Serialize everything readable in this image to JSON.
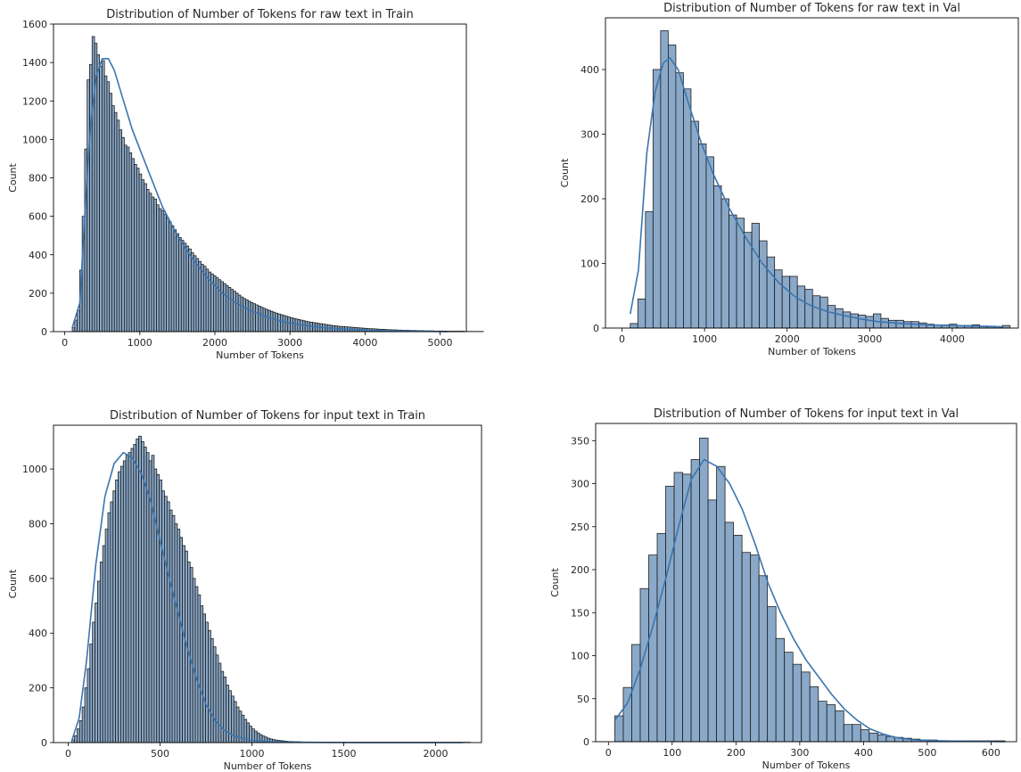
{
  "colors": {
    "bar": "#7096bd",
    "edge": "#1f1f1f",
    "kde": "#3b75af"
  },
  "chart_data": [
    {
      "type": "bar",
      "title": "Distribution of Number of Tokens for raw text in Train",
      "xlabel": "Number of Tokens",
      "ylabel": "Count",
      "xlim": [
        -150,
        5350
      ],
      "ylim": [
        0,
        1600
      ],
      "xticks": [
        0,
        1000,
        2000,
        3000,
        4000,
        5000
      ],
      "yticks": [
        0,
        200,
        400,
        600,
        800,
        1000,
        1200,
        1400,
        1600
      ],
      "bin_start": 100,
      "bin_width": 33,
      "values": [
        20,
        60,
        110,
        320,
        600,
        950,
        1310,
        1390,
        1535,
        1500,
        1440,
        1380,
        1410,
        1330,
        1300,
        1240,
        1175,
        1140,
        1100,
        1050,
        1010,
        970,
        960,
        930,
        900,
        870,
        850,
        820,
        790,
        770,
        740,
        720,
        700,
        690,
        660,
        640,
        630,
        610,
        590,
        570,
        550,
        530,
        510,
        490,
        475,
        460,
        445,
        430,
        410,
        395,
        380,
        365,
        350,
        340,
        325,
        310,
        300,
        290,
        280,
        270,
        260,
        250,
        240,
        230,
        220,
        210,
        200,
        190,
        180,
        172,
        165,
        158,
        151,
        145,
        139,
        133,
        127,
        121,
        116,
        111,
        106,
        101,
        96,
        92,
        88,
        84,
        80,
        76,
        72,
        69,
        66,
        63,
        60,
        57,
        54,
        51,
        49,
        47,
        45,
        43,
        41,
        39,
        37,
        35,
        33,
        31,
        30,
        28,
        27,
        26,
        25,
        24,
        23,
        22,
        21,
        20,
        19,
        18,
        17,
        16,
        15,
        15,
        14,
        13,
        12,
        12,
        11,
        10,
        10,
        9,
        9,
        8,
        8,
        7,
        7,
        7,
        6,
        6,
        6,
        5,
        5,
        5,
        4,
        4,
        4,
        4,
        3,
        3,
        3,
        3,
        3,
        2,
        2,
        2,
        2,
        2,
        2,
        2,
        1,
        1,
        1,
        1,
        1,
        1,
        1,
        1
      ],
      "kde": [
        [
          100,
          20
        ],
        [
          200,
          150
        ],
        [
          280,
          700
        ],
        [
          350,
          1100
        ],
        [
          420,
          1330
        ],
        [
          500,
          1420
        ],
        [
          580,
          1420
        ],
        [
          660,
          1360
        ],
        [
          760,
          1230
        ],
        [
          900,
          1050
        ],
        [
          1100,
          850
        ],
        [
          1300,
          650
        ],
        [
          1500,
          500
        ],
        [
          1700,
          380
        ],
        [
          1900,
          280
        ],
        [
          2100,
          200
        ],
        [
          2300,
          145
        ],
        [
          2500,
          105
        ],
        [
          2700,
          75
        ],
        [
          2900,
          52
        ],
        [
          3100,
          38
        ],
        [
          3300,
          27
        ],
        [
          3500,
          19
        ],
        [
          3800,
          11
        ],
        [
          4100,
          6
        ],
        [
          4400,
          4
        ],
        [
          4700,
          2
        ],
        [
          5100,
          0
        ]
      ],
      "grid": false,
      "legend": "none"
    },
    {
      "type": "bar",
      "title": "Distribution of Number of Tokens for raw text in Val",
      "xlabel": "Number of Tokens",
      "ylabel": "Count",
      "xlim": [
        -200,
        4800
      ],
      "ylim": [
        0,
        480
      ],
      "xticks": [
        0,
        1000,
        2000,
        3000,
        4000
      ],
      "yticks": [
        0,
        100,
        200,
        300,
        400
      ],
      "bin_start": 100,
      "bin_width": 92,
      "values": [
        7,
        45,
        180,
        400,
        460,
        438,
        395,
        370,
        320,
        285,
        265,
        220,
        200,
        175,
        170,
        148,
        162,
        135,
        110,
        90,
        80,
        80,
        65,
        60,
        50,
        48,
        35,
        30,
        25,
        22,
        20,
        18,
        22,
        15,
        12,
        12,
        10,
        10,
        8,
        6,
        5,
        5,
        6,
        4,
        4,
        5,
        3,
        3,
        2,
        4
      ],
      "kde": [
        [
          100,
          22
        ],
        [
          200,
          90
        ],
        [
          300,
          270
        ],
        [
          400,
          365
        ],
        [
          500,
          410
        ],
        [
          580,
          418
        ],
        [
          680,
          400
        ],
        [
          800,
          350
        ],
        [
          950,
          290
        ],
        [
          1100,
          240
        ],
        [
          1300,
          185
        ],
        [
          1500,
          140
        ],
        [
          1700,
          100
        ],
        [
          1900,
          70
        ],
        [
          2100,
          48
        ],
        [
          2300,
          34
        ],
        [
          2500,
          25
        ],
        [
          2700,
          19
        ],
        [
          2900,
          14
        ],
        [
          3100,
          10
        ],
        [
          3400,
          7
        ],
        [
          3700,
          5
        ],
        [
          4000,
          4
        ],
        [
          4300,
          3
        ],
        [
          4600,
          2
        ]
      ],
      "grid": false,
      "legend": "none"
    },
    {
      "type": "bar",
      "title": "Distribution of Number of Tokens for input text in Train",
      "xlabel": "Number of Tokens",
      "ylabel": "Count",
      "xlim": [
        -80,
        2250
      ],
      "ylim": [
        0,
        1160
      ],
      "xticks": [
        0,
        500,
        1000,
        1500,
        2000
      ],
      "yticks": [
        0,
        200,
        400,
        600,
        800,
        1000
      ],
      "bin_start": 20,
      "bin_width": 14,
      "values": [
        10,
        25,
        50,
        80,
        130,
        200,
        270,
        360,
        440,
        510,
        590,
        660,
        720,
        780,
        840,
        880,
        920,
        960,
        990,
        1010,
        1030,
        1050,
        1060,
        1075,
        1090,
        1110,
        1120,
        1100,
        1080,
        1060,
        1030,
        1050,
        1000,
        980,
        960,
        920,
        900,
        880,
        850,
        830,
        800,
        780,
        750,
        720,
        700,
        660,
        640,
        600,
        570,
        540,
        500,
        470,
        440,
        410,
        380,
        350,
        320,
        290,
        260,
        240,
        210,
        190,
        170,
        150,
        130,
        115,
        100,
        85,
        72,
        60,
        50,
        42,
        35,
        29,
        24,
        20,
        16,
        13,
        11,
        9,
        8,
        7,
        6,
        5,
        4,
        4,
        3,
        3,
        3,
        2,
        2,
        2,
        2,
        2,
        2,
        2,
        1,
        1,
        1,
        1,
        1,
        1,
        1,
        1,
        1,
        1,
        1,
        1,
        1,
        1,
        1,
        1,
        1,
        1,
        1,
        1,
        1,
        1,
        1,
        1,
        1,
        1,
        1,
        1,
        1,
        1,
        1,
        1,
        1,
        1,
        1,
        1,
        1,
        1,
        1,
        1,
        1,
        1,
        1,
        1,
        1,
        1,
        1,
        1,
        1,
        1,
        1,
        1,
        1,
        1,
        1,
        1,
        1,
        1,
        1
      ],
      "kde": [
        [
          20,
          8
        ],
        [
          60,
          90
        ],
        [
          100,
          300
        ],
        [
          150,
          650
        ],
        [
          200,
          900
        ],
        [
          250,
          1020
        ],
        [
          300,
          1060
        ],
        [
          350,
          1040
        ],
        [
          400,
          980
        ],
        [
          450,
          880
        ],
        [
          500,
          740
        ],
        [
          550,
          600
        ],
        [
          600,
          470
        ],
        [
          650,
          340
        ],
        [
          700,
          230
        ],
        [
          750,
          140
        ],
        [
          800,
          80
        ],
        [
          850,
          45
        ],
        [
          900,
          25
        ],
        [
          1000,
          8
        ],
        [
          1100,
          3
        ],
        [
          1300,
          1
        ],
        [
          1600,
          0
        ],
        [
          2150,
          0
        ]
      ],
      "grid": false,
      "legend": "none"
    },
    {
      "type": "bar",
      "title": "Distribution of Number of Tokens for input text in Val",
      "xlabel": "Number of Tokens",
      "ylabel": "Count",
      "xlim": [
        -20,
        640
      ],
      "ylim": [
        0,
        370
      ],
      "xticks": [
        0,
        100,
        200,
        300,
        400,
        500,
        600
      ],
      "yticks": [
        0,
        50,
        100,
        150,
        200,
        250,
        300,
        350
      ],
      "bin_start": 10,
      "bin_width": 13.3,
      "values": [
        30,
        63,
        113,
        178,
        217,
        242,
        297,
        313,
        311,
        328,
        353,
        281,
        320,
        255,
        240,
        220,
        217,
        193,
        157,
        120,
        104,
        90,
        81,
        64,
        47,
        43,
        36,
        20,
        20,
        14,
        10,
        8,
        6,
        5,
        4,
        3,
        2,
        2,
        1,
        1,
        1,
        1,
        1,
        1,
        1,
        1
      ],
      "kde": [
        [
          10,
          25
        ],
        [
          30,
          45
        ],
        [
          50,
          85
        ],
        [
          70,
          135
        ],
        [
          90,
          190
        ],
        [
          110,
          250
        ],
        [
          130,
          305
        ],
        [
          150,
          328
        ],
        [
          170,
          320
        ],
        [
          190,
          300
        ],
        [
          210,
          270
        ],
        [
          230,
          230
        ],
        [
          250,
          185
        ],
        [
          270,
          150
        ],
        [
          290,
          120
        ],
        [
          310,
          95
        ],
        [
          330,
          75
        ],
        [
          350,
          55
        ],
        [
          370,
          38
        ],
        [
          390,
          25
        ],
        [
          410,
          15
        ],
        [
          430,
          9
        ],
        [
          450,
          5
        ],
        [
          480,
          2
        ],
        [
          520,
          1
        ],
        [
          620,
          0
        ]
      ],
      "grid": false,
      "legend": "none"
    }
  ]
}
